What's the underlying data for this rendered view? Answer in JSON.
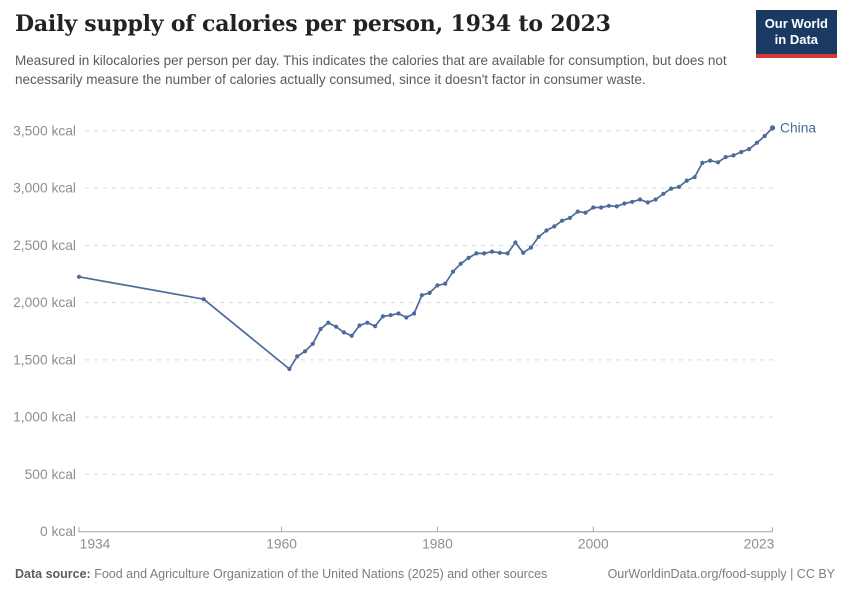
{
  "header": {
    "title": "Daily supply of calories per person, 1934 to 2023",
    "subtitle": "Measured in kilocalories per person per day. This indicates the calories that are available for consumption, but does not necessarily measure the number of calories actually consumed, since it doesn't factor in consumer waste.",
    "logo": {
      "line1": "Our World",
      "line2": "in Data",
      "bg_color": "#1a3a63",
      "accent_color": "#d13b32"
    }
  },
  "chart_data": {
    "type": "line",
    "title": "Daily supply of calories per person, 1934 to 2023",
    "unit": "kcal",
    "xlim": [
      1934,
      2023
    ],
    "ylim": [
      0,
      3500
    ],
    "grid": "horizontal-dashed",
    "legend_position": "end-of-line",
    "x_ticks": [
      {
        "value": 1934,
        "label": "1934"
      },
      {
        "value": 1960,
        "label": "1960"
      },
      {
        "value": 1980,
        "label": "1980"
      },
      {
        "value": 2000,
        "label": "2000"
      },
      {
        "value": 2023,
        "label": "2023"
      }
    ],
    "y_ticks": [
      {
        "value": 0,
        "label": "0 kcal"
      },
      {
        "value": 500,
        "label": "500 kcal"
      },
      {
        "value": 1000,
        "label": "1,000 kcal"
      },
      {
        "value": 1500,
        "label": "1,500 kcal"
      },
      {
        "value": 2000,
        "label": "2,000 kcal"
      },
      {
        "value": 2500,
        "label": "2,500 kcal"
      },
      {
        "value": 3000,
        "label": "3,000 kcal"
      },
      {
        "value": 3500,
        "label": "3,500 kcal"
      }
    ],
    "series": [
      {
        "name": "China",
        "color": "#4C6A9C",
        "points": [
          [
            1934,
            2225
          ],
          [
            1950,
            2030
          ],
          [
            1961,
            1420
          ],
          [
            1962,
            1530
          ],
          [
            1963,
            1575
          ],
          [
            1964,
            1640
          ],
          [
            1965,
            1770
          ],
          [
            1966,
            1825
          ],
          [
            1967,
            1790
          ],
          [
            1968,
            1740
          ],
          [
            1969,
            1710
          ],
          [
            1970,
            1800
          ],
          [
            1971,
            1825
          ],
          [
            1972,
            1795
          ],
          [
            1973,
            1880
          ],
          [
            1974,
            1890
          ],
          [
            1975,
            1905
          ],
          [
            1976,
            1870
          ],
          [
            1977,
            1905
          ],
          [
            1978,
            2065
          ],
          [
            1979,
            2085
          ],
          [
            1980,
            2150
          ],
          [
            1981,
            2165
          ],
          [
            1982,
            2270
          ],
          [
            1983,
            2340
          ],
          [
            1984,
            2390
          ],
          [
            1985,
            2430
          ],
          [
            1986,
            2430
          ],
          [
            1987,
            2445
          ],
          [
            1988,
            2435
          ],
          [
            1989,
            2430
          ],
          [
            1990,
            2525
          ],
          [
            1991,
            2435
          ],
          [
            1992,
            2480
          ],
          [
            1993,
            2575
          ],
          [
            1994,
            2630
          ],
          [
            1995,
            2665
          ],
          [
            1996,
            2715
          ],
          [
            1997,
            2740
          ],
          [
            1998,
            2795
          ],
          [
            1999,
            2785
          ],
          [
            2000,
            2830
          ],
          [
            2001,
            2830
          ],
          [
            2002,
            2845
          ],
          [
            2003,
            2840
          ],
          [
            2004,
            2865
          ],
          [
            2005,
            2880
          ],
          [
            2006,
            2900
          ],
          [
            2007,
            2875
          ],
          [
            2008,
            2900
          ],
          [
            2009,
            2950
          ],
          [
            2010,
            2995
          ],
          [
            2011,
            3010
          ],
          [
            2012,
            3065
          ],
          [
            2013,
            3095
          ],
          [
            2014,
            3220
          ],
          [
            2015,
            3240
          ],
          [
            2016,
            3225
          ],
          [
            2017,
            3270
          ],
          [
            2018,
            3285
          ],
          [
            2019,
            3315
          ],
          [
            2020,
            3340
          ],
          [
            2021,
            3395
          ],
          [
            2022,
            3455
          ],
          [
            2023,
            3525
          ]
        ]
      }
    ]
  },
  "footer": {
    "source_label": "Data source:",
    "source_text": "Food and Agriculture Organization of the United Nations (2025) and other sources",
    "credit": "OurWorldinData.org/food-supply | CC BY"
  }
}
